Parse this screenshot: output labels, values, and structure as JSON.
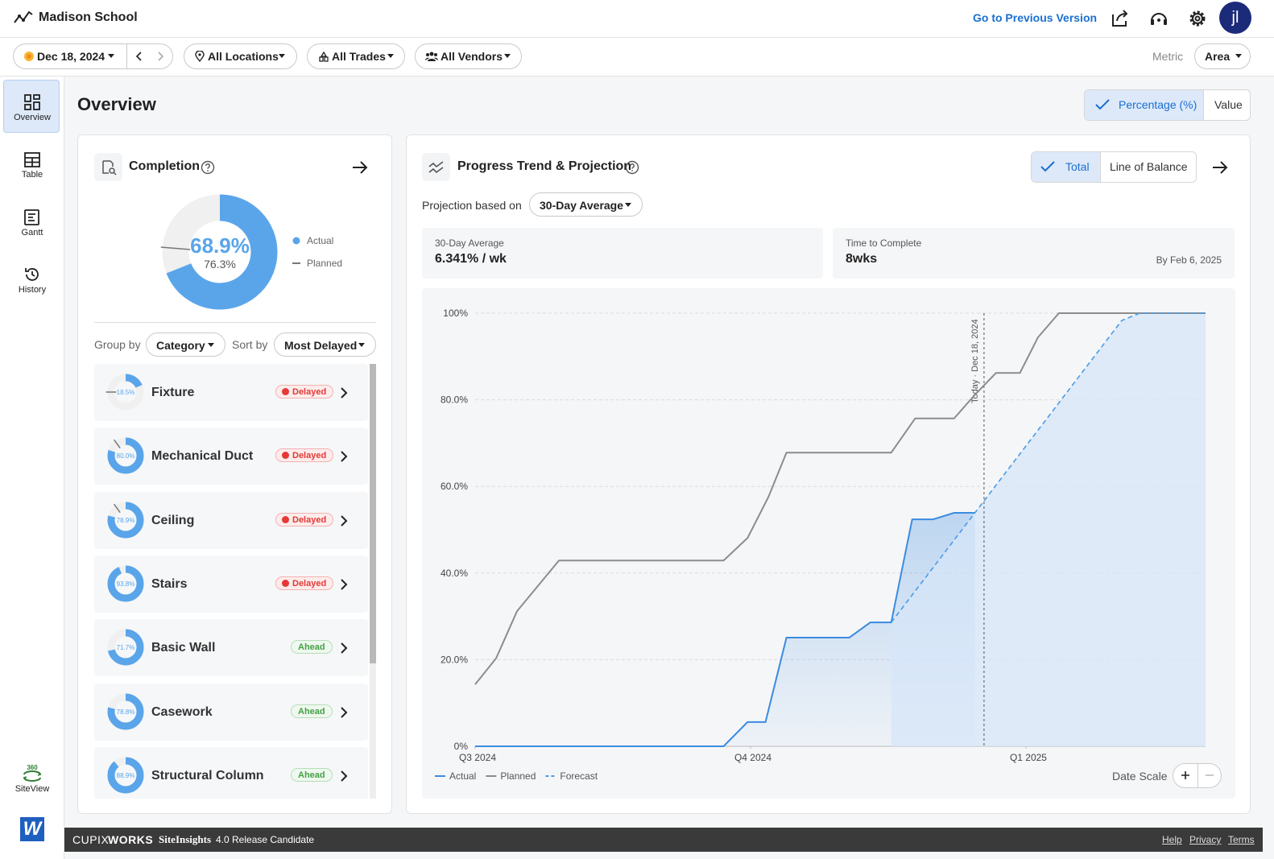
{
  "header": {
    "title": "Madison School",
    "previous_version": "Go to Previous Version",
    "avatar": "jl"
  },
  "toolbar": {
    "date": "Dec 18, 2024",
    "filters": [
      "All Locations",
      "All Trades",
      "All Vendors"
    ],
    "metric_label": "Metric",
    "metric": "Area"
  },
  "sidebar": {
    "items": [
      "Overview",
      "Table",
      "Gantt",
      "History"
    ],
    "siteview_badge": "360",
    "siteview": "SiteView",
    "logo": "W"
  },
  "overview": {
    "title": "Overview",
    "modes": [
      "Percentage (%)",
      "Value"
    ]
  },
  "completion": {
    "title": "Completion",
    "actual": 68.9,
    "actual_label": "68.9%",
    "planned": 76.3,
    "planned_label": "76.3%",
    "legend": [
      "Actual",
      "Planned"
    ],
    "group_by_label": "Group by",
    "group_by": "Category",
    "sort_by_label": "Sort by",
    "sort_by": "Most Delayed",
    "items": [
      {
        "name": "Fixture",
        "actual": 18.5,
        "actual_label": "18.5%",
        "planned": 75,
        "status": "Delayed"
      },
      {
        "name": "Mechanical Duct",
        "actual": 80.0,
        "actual_label": "80.0%",
        "planned": 90,
        "status": "Delayed"
      },
      {
        "name": "Ceiling",
        "actual": 78.9,
        "actual_label": "78.9%",
        "planned": 90,
        "status": "Delayed"
      },
      {
        "name": "Stairs",
        "actual": 93.8,
        "actual_label": "93.8%",
        "status": "Delayed"
      },
      {
        "name": "Basic Wall",
        "actual": 71.7,
        "actual_label": "71.7%",
        "status": "Ahead"
      },
      {
        "name": "Casework",
        "actual": 78.8,
        "actual_label": "78.8%",
        "status": "Ahead"
      },
      {
        "name": "Structural Column",
        "actual": 88.9,
        "actual_label": "88.9%",
        "status": "Ahead"
      }
    ]
  },
  "progress": {
    "title": "Progress Trend & Projection",
    "views": [
      "Total",
      "Line of Balance"
    ],
    "projection_label": "Projection based on",
    "projection": "30-Day Average",
    "stats": [
      {
        "label": "30-Day Average",
        "value": "6.341% / wk"
      },
      {
        "label": "Time to Complete",
        "value": "8wks",
        "note": "By Feb 6, 2025"
      }
    ],
    "chart": {
      "type": "line",
      "xlim": [
        0,
        244
      ],
      "xticks": [
        {
          "value": 0,
          "label": "Q3 2024"
        },
        {
          "value": 92,
          "label": "Q4 2024"
        },
        {
          "value": 184,
          "label": "Q1 2025"
        }
      ],
      "ylim": [
        0,
        100
      ],
      "yticks": [
        {
          "value": 0,
          "label": "0%"
        },
        {
          "value": 20,
          "label": "20.0%"
        },
        {
          "value": 40,
          "label": "40.0%"
        },
        {
          "value": 60,
          "label": "60.0%"
        },
        {
          "value": 80,
          "label": "80.0%"
        },
        {
          "value": 100,
          "label": "100%"
        }
      ],
      "grid": true,
      "today": {
        "value": 170,
        "label": "Today · Dec 18, 2024"
      },
      "series": [
        {
          "name": "Actual",
          "color": "#3b8be0",
          "dash": false,
          "area": true,
          "x": [
            0,
            83,
            91,
            97,
            104,
            125,
            132,
            139,
            146,
            153,
            160,
            167
          ],
          "values": [
            0,
            0,
            5.6,
            5.6,
            25.1,
            25.1,
            28.6,
            28.6,
            52.4,
            52.4,
            53.9,
            53.9
          ]
        },
        {
          "name": "Planned",
          "color": "#8c8c8c",
          "dash": false,
          "area": false,
          "x": [
            0,
            7,
            14,
            28,
            83,
            91,
            98,
            104,
            139,
            147,
            160,
            167,
            174,
            182,
            188,
            195,
            244
          ],
          "values": [
            14.3,
            20.3,
            31.2,
            42.9,
            42.9,
            48.1,
            57.6,
            67.8,
            67.8,
            75.7,
            75.7,
            81.2,
            86.2,
            86.2,
            94.4,
            100,
            100
          ]
        },
        {
          "name": "Forecast",
          "color": "#4a9be8",
          "dash": true,
          "area": true,
          "x": [
            139,
            216,
            222,
            244
          ],
          "values": [
            28.6,
            98.3,
            100,
            100
          ]
        }
      ]
    },
    "date_scale": "Date Scale"
  },
  "footer": {
    "brand": "CUPIX",
    "brand_bold": "WORKS",
    "product": "SiteInsights",
    "version": "4.0 Release Candidate",
    "links": [
      "Help",
      "Privacy",
      "Terms"
    ]
  }
}
